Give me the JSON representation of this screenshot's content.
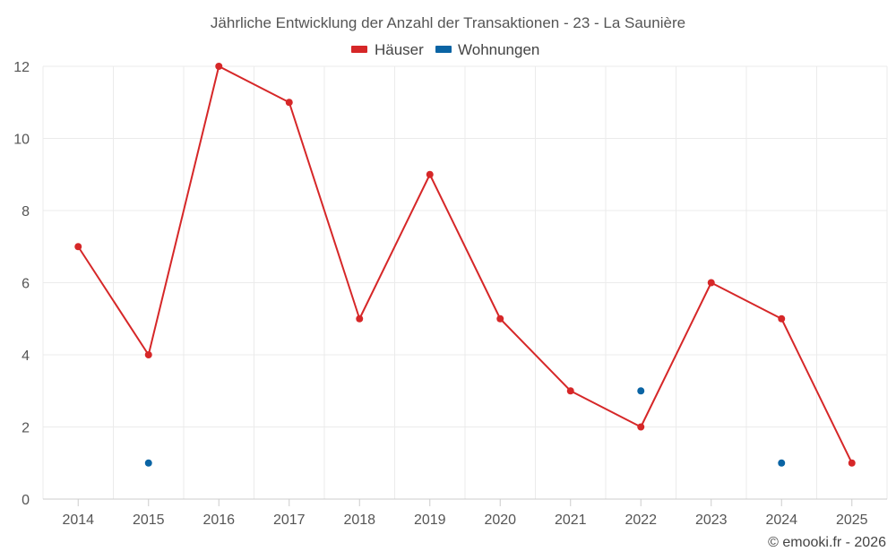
{
  "chart_data": {
    "type": "line",
    "title": "Jährliche Entwicklung der Anzahl der Transaktionen - 23 - La Saunière",
    "x": [
      "2014",
      "2015",
      "2016",
      "2017",
      "2018",
      "2019",
      "2020",
      "2021",
      "2022",
      "2023",
      "2024",
      "2025"
    ],
    "series": [
      {
        "name": "Häuser",
        "color": "#d62728",
        "mode": "line",
        "values": [
          7,
          4,
          12,
          11,
          5,
          9,
          5,
          3,
          2,
          6,
          5,
          1
        ]
      },
      {
        "name": "Wohnungen",
        "color": "#0a64a4",
        "mode": "markers",
        "values": [
          null,
          1,
          null,
          null,
          null,
          null,
          null,
          null,
          3,
          null,
          1,
          null
        ]
      }
    ],
    "ylim": [
      0,
      12
    ],
    "yticks": [
      "0",
      "2",
      "4",
      "6",
      "8",
      "10",
      "12"
    ],
    "grid": true,
    "legend_position": "top-center",
    "credit": "© emooki.fr - 2026"
  }
}
